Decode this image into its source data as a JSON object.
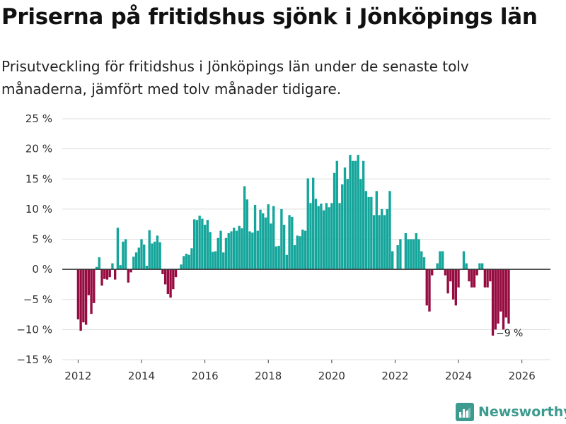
{
  "header": {
    "title": "Priserna på fritidshus sjönk i Jönköpings län",
    "subtitle": "Prisutveckling för fritidshus i Jönköpings län under de senaste tolv månaderna, jämfört med tolv månader tidigare."
  },
  "brand": {
    "name": "Newsworthy"
  },
  "colors": {
    "positive": "#14a59b",
    "negative": "#960c41",
    "zero_line": "#333333",
    "grid": "#dddddd"
  },
  "chart_data": {
    "type": "bar",
    "title": "Priserna på fritidshus sjönk i Jönköpings län",
    "ylabel": "",
    "xlabel": "",
    "ylim": [
      -15,
      25
    ],
    "xlim": [
      2011.5,
      2026.9
    ],
    "y_ticks": [
      25,
      20,
      15,
      10,
      5,
      0,
      -5,
      -10,
      -15
    ],
    "y_tick_labels": [
      "25 %",
      "20 %",
      "15 %",
      "10 %",
      "5 %",
      "0 %",
      "−5 %",
      "−10 %",
      "−15 %"
    ],
    "x_ticks": [
      2012,
      2014,
      2016,
      2018,
      2020,
      2022,
      2024,
      2026
    ],
    "x_tick_labels": [
      "2012",
      "2014",
      "2016",
      "2018",
      "2020",
      "2022",
      "2024",
      "2026"
    ],
    "start": 2012.0,
    "step": 0.08333,
    "series": [
      {
        "name": "Prisutveckling",
        "values": [
          -8.3,
          -10.2,
          -8.8,
          -9.2,
          -4.3,
          -7.4,
          -5.6,
          0.4,
          2.0,
          -2.7,
          -1.6,
          -1.7,
          -1.3,
          1.0,
          -1.7,
          6.9,
          0.7,
          4.6,
          5.0,
          -2.2,
          -0.5,
          2.1,
          2.8,
          3.6,
          5.0,
          4.1,
          0.6,
          6.5,
          4.3,
          4.6,
          5.6,
          4.5,
          -0.8,
          -2.5,
          -4.1,
          -4.7,
          -3.3,
          -1.3,
          0.1,
          0.8,
          2.2,
          2.6,
          2.4,
          3.5,
          8.3,
          8.2,
          8.9,
          8.4,
          7.4,
          8.2,
          6.2,
          2.9,
          3.0,
          5.2,
          6.4,
          2.8,
          5.2,
          6.0,
          6.3,
          6.9,
          6.4,
          7.2,
          6.8,
          13.8,
          11.6,
          6.3,
          6.1,
          10.7,
          6.4,
          9.9,
          9.3,
          8.6,
          10.8,
          7.6,
          10.5,
          3.8,
          3.9,
          10.0,
          7.4,
          2.4,
          9.0,
          8.7,
          4.0,
          5.6,
          5.5,
          6.6,
          6.4,
          15.1,
          11.0,
          15.2,
          11.7,
          10.5,
          10.9,
          9.8,
          11.0,
          10.3,
          11.0,
          16.0,
          18.0,
          11.0,
          14.1,
          16.9,
          15.0,
          19.0,
          18.0,
          18.0,
          19.0,
          15.0,
          18.0,
          13.0,
          12.0,
          12.0,
          9.0,
          13.0,
          9.0,
          10.0,
          9.0,
          10.0,
          13.0,
          3.0,
          -0.1,
          4.0,
          5.0,
          0.1,
          6.0,
          5.0,
          5.0,
          5.0,
          6.0,
          5.0,
          3.0,
          2.0,
          -6.0,
          -7.0,
          -1.0,
          0.1,
          1.0,
          3.0,
          3.0,
          -1.0,
          -4.0,
          -2.0,
          -5.0,
          -6.0,
          -3.0,
          0.1,
          3.0,
          1.0,
          -2.0,
          -3.0,
          -3.0,
          -1.0,
          1.0,
          1.0,
          -3.0,
          -3.0,
          -2.0,
          -11.0,
          -10.0,
          -9.0,
          -7.0,
          -10.0,
          -8.0,
          -9.0
        ]
      }
    ],
    "annotations": [
      {
        "label": "−9 %"
      }
    ]
  }
}
